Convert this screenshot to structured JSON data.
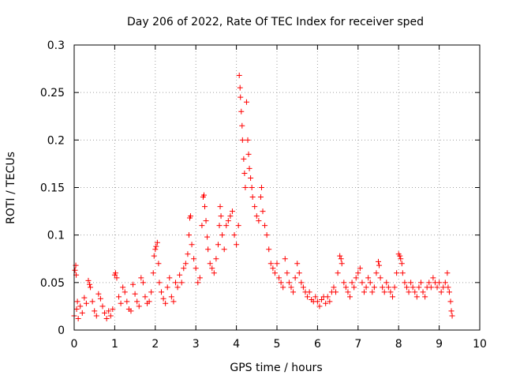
{
  "chart_data": {
    "type": "scatter",
    "title": "Day 206 of 2022, Rate Of TEC Index for receiver sped",
    "xlabel": "GPS time / hours",
    "ylabel": "ROTI / TECUs",
    "xlim": [
      0,
      10
    ],
    "ylim": [
      0,
      0.3
    ],
    "x_ticks": [
      0,
      1,
      2,
      3,
      4,
      5,
      6,
      7,
      8,
      9,
      10
    ],
    "x_tick_labels": [
      "0",
      "1",
      "2",
      "3",
      "4",
      "5",
      "6",
      "7",
      "8",
      "9",
      "10"
    ],
    "y_ticks": [
      0,
      0.05,
      0.1,
      0.15,
      0.2,
      0.25,
      0.3
    ],
    "y_tick_labels": [
      "0",
      "0.05",
      "0.1",
      "0.15",
      "0.2",
      "0.25",
      "0.3"
    ],
    "grid": true,
    "marker": "+",
    "color": "#ff0000",
    "series": [
      {
        "name": "ROTI",
        "points": [
          [
            0.0,
            0.015
          ],
          [
            0.02,
            0.063
          ],
          [
            0.04,
            0.068
          ],
          [
            0.05,
            0.058
          ],
          [
            0.06,
            0.022
          ],
          [
            0.08,
            0.03
          ],
          [
            0.1,
            0.012
          ],
          [
            0.15,
            0.025
          ],
          [
            0.2,
            0.018
          ],
          [
            0.25,
            0.034
          ],
          [
            0.3,
            0.028
          ],
          [
            0.35,
            0.052
          ],
          [
            0.38,
            0.048
          ],
          [
            0.4,
            0.045
          ],
          [
            0.45,
            0.03
          ],
          [
            0.5,
            0.02
          ],
          [
            0.55,
            0.015
          ],
          [
            0.6,
            0.038
          ],
          [
            0.65,
            0.033
          ],
          [
            0.7,
            0.025
          ],
          [
            0.75,
            0.018
          ],
          [
            0.8,
            0.012
          ],
          [
            0.85,
            0.02
          ],
          [
            0.9,
            0.015
          ],
          [
            0.95,
            0.022
          ],
          [
            1.0,
            0.058
          ],
          [
            1.02,
            0.06
          ],
          [
            1.05,
            0.055
          ],
          [
            1.1,
            0.035
          ],
          [
            1.15,
            0.028
          ],
          [
            1.2,
            0.045
          ],
          [
            1.25,
            0.04
          ],
          [
            1.3,
            0.03
          ],
          [
            1.35,
            0.022
          ],
          [
            1.4,
            0.02
          ],
          [
            1.45,
            0.048
          ],
          [
            1.5,
            0.038
          ],
          [
            1.55,
            0.03
          ],
          [
            1.6,
            0.025
          ],
          [
            1.65,
            0.055
          ],
          [
            1.7,
            0.05
          ],
          [
            1.75,
            0.035
          ],
          [
            1.8,
            0.028
          ],
          [
            1.85,
            0.03
          ],
          [
            1.9,
            0.04
          ],
          [
            1.95,
            0.06
          ],
          [
            1.97,
            0.078
          ],
          [
            2.0,
            0.085
          ],
          [
            2.02,
            0.088
          ],
          [
            2.05,
            0.092
          ],
          [
            2.08,
            0.07
          ],
          [
            2.1,
            0.05
          ],
          [
            2.15,
            0.04
          ],
          [
            2.2,
            0.033
          ],
          [
            2.25,
            0.028
          ],
          [
            2.3,
            0.045
          ],
          [
            2.35,
            0.055
          ],
          [
            2.4,
            0.035
          ],
          [
            2.45,
            0.03
          ],
          [
            2.5,
            0.05
          ],
          [
            2.55,
            0.045
          ],
          [
            2.6,
            0.058
          ],
          [
            2.65,
            0.05
          ],
          [
            2.7,
            0.065
          ],
          [
            2.75,
            0.07
          ],
          [
            2.8,
            0.08
          ],
          [
            2.83,
            0.1
          ],
          [
            2.85,
            0.118
          ],
          [
            2.87,
            0.12
          ],
          [
            2.9,
            0.09
          ],
          [
            2.95,
            0.075
          ],
          [
            3.0,
            0.065
          ],
          [
            3.05,
            0.05
          ],
          [
            3.1,
            0.055
          ],
          [
            3.15,
            0.11
          ],
          [
            3.18,
            0.14
          ],
          [
            3.2,
            0.142
          ],
          [
            3.22,
            0.13
          ],
          [
            3.25,
            0.115
          ],
          [
            3.28,
            0.098
          ],
          [
            3.3,
            0.085
          ],
          [
            3.35,
            0.07
          ],
          [
            3.4,
            0.065
          ],
          [
            3.45,
            0.06
          ],
          [
            3.5,
            0.075
          ],
          [
            3.55,
            0.09
          ],
          [
            3.58,
            0.11
          ],
          [
            3.6,
            0.13
          ],
          [
            3.62,
            0.12
          ],
          [
            3.65,
            0.1
          ],
          [
            3.7,
            0.085
          ],
          [
            3.75,
            0.11
          ],
          [
            3.8,
            0.115
          ],
          [
            3.85,
            0.12
          ],
          [
            3.9,
            0.125
          ],
          [
            3.95,
            0.1
          ],
          [
            4.0,
            0.09
          ],
          [
            4.05,
            0.11
          ],
          [
            4.07,
            0.268
          ],
          [
            4.09,
            0.255
          ],
          [
            4.1,
            0.245
          ],
          [
            4.12,
            0.23
          ],
          [
            4.14,
            0.215
          ],
          [
            4.15,
            0.2
          ],
          [
            4.18,
            0.18
          ],
          [
            4.2,
            0.165
          ],
          [
            4.22,
            0.15
          ],
          [
            4.25,
            0.24
          ],
          [
            4.28,
            0.2
          ],
          [
            4.3,
            0.185
          ],
          [
            4.32,
            0.17
          ],
          [
            4.35,
            0.16
          ],
          [
            4.38,
            0.15
          ],
          [
            4.4,
            0.14
          ],
          [
            4.45,
            0.13
          ],
          [
            4.5,
            0.12
          ],
          [
            4.55,
            0.115
          ],
          [
            4.6,
            0.14
          ],
          [
            4.62,
            0.15
          ],
          [
            4.65,
            0.125
          ],
          [
            4.7,
            0.11
          ],
          [
            4.75,
            0.1
          ],
          [
            4.8,
            0.085
          ],
          [
            4.85,
            0.07
          ],
          [
            4.9,
            0.065
          ],
          [
            4.95,
            0.06
          ],
          [
            5.0,
            0.07
          ],
          [
            5.05,
            0.055
          ],
          [
            5.1,
            0.05
          ],
          [
            5.15,
            0.045
          ],
          [
            5.2,
            0.075
          ],
          [
            5.25,
            0.06
          ],
          [
            5.3,
            0.05
          ],
          [
            5.35,
            0.045
          ],
          [
            5.4,
            0.04
          ],
          [
            5.45,
            0.055
          ],
          [
            5.5,
            0.07
          ],
          [
            5.55,
            0.06
          ],
          [
            5.6,
            0.05
          ],
          [
            5.65,
            0.045
          ],
          [
            5.7,
            0.04
          ],
          [
            5.75,
            0.035
          ],
          [
            5.8,
            0.04
          ],
          [
            5.85,
            0.032
          ],
          [
            5.9,
            0.03
          ],
          [
            5.95,
            0.035
          ],
          [
            6.0,
            0.03
          ],
          [
            6.05,
            0.025
          ],
          [
            6.1,
            0.032
          ],
          [
            6.15,
            0.035
          ],
          [
            6.2,
            0.028
          ],
          [
            6.25,
            0.035
          ],
          [
            6.3,
            0.03
          ],
          [
            6.35,
            0.04
          ],
          [
            6.4,
            0.045
          ],
          [
            6.45,
            0.04
          ],
          [
            6.5,
            0.06
          ],
          [
            6.55,
            0.078
          ],
          [
            6.58,
            0.075
          ],
          [
            6.6,
            0.07
          ],
          [
            6.65,
            0.05
          ],
          [
            6.7,
            0.045
          ],
          [
            6.75,
            0.04
          ],
          [
            6.8,
            0.035
          ],
          [
            6.85,
            0.05
          ],
          [
            6.9,
            0.045
          ],
          [
            6.95,
            0.055
          ],
          [
            7.0,
            0.06
          ],
          [
            7.05,
            0.065
          ],
          [
            7.1,
            0.05
          ],
          [
            7.15,
            0.04
          ],
          [
            7.2,
            0.045
          ],
          [
            7.25,
            0.055
          ],
          [
            7.3,
            0.05
          ],
          [
            7.35,
            0.04
          ],
          [
            7.4,
            0.045
          ],
          [
            7.45,
            0.06
          ],
          [
            7.5,
            0.072
          ],
          [
            7.52,
            0.068
          ],
          [
            7.55,
            0.055
          ],
          [
            7.6,
            0.045
          ],
          [
            7.65,
            0.04
          ],
          [
            7.7,
            0.05
          ],
          [
            7.75,
            0.045
          ],
          [
            7.8,
            0.04
          ],
          [
            7.85,
            0.035
          ],
          [
            7.9,
            0.045
          ],
          [
            7.95,
            0.06
          ],
          [
            8.0,
            0.08
          ],
          [
            8.03,
            0.078
          ],
          [
            8.05,
            0.075
          ],
          [
            8.08,
            0.07
          ],
          [
            8.1,
            0.06
          ],
          [
            8.15,
            0.05
          ],
          [
            8.2,
            0.045
          ],
          [
            8.25,
            0.04
          ],
          [
            8.3,
            0.05
          ],
          [
            8.35,
            0.045
          ],
          [
            8.4,
            0.04
          ],
          [
            8.45,
            0.035
          ],
          [
            8.5,
            0.045
          ],
          [
            8.55,
            0.05
          ],
          [
            8.6,
            0.04
          ],
          [
            8.65,
            0.035
          ],
          [
            8.7,
            0.045
          ],
          [
            8.75,
            0.05
          ],
          [
            8.8,
            0.045
          ],
          [
            8.85,
            0.055
          ],
          [
            8.9,
            0.05
          ],
          [
            8.95,
            0.045
          ],
          [
            9.0,
            0.05
          ],
          [
            9.05,
            0.04
          ],
          [
            9.1,
            0.045
          ],
          [
            9.15,
            0.05
          ],
          [
            9.2,
            0.06
          ],
          [
            9.22,
            0.045
          ],
          [
            9.25,
            0.04
          ],
          [
            9.28,
            0.03
          ],
          [
            9.3,
            0.02
          ],
          [
            9.32,
            0.015
          ]
        ]
      }
    ]
  }
}
